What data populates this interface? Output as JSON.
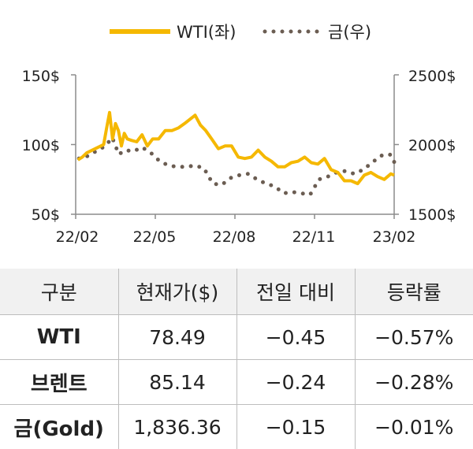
{
  "chart_data": {
    "type": "line",
    "legend": [
      {
        "name": "WTI(좌)",
        "color": "#F5B800",
        "style": "solid"
      },
      {
        "name": "금(우)",
        "color": "#6b5d52",
        "style": "dotted"
      }
    ],
    "legend_position": "top-center",
    "x_ticks": [
      "22/02",
      "22/05",
      "22/08",
      "22/11",
      "23/02"
    ],
    "y_left": {
      "ticks": [
        "150$",
        "100$",
        "50$"
      ],
      "range": [
        50,
        150
      ]
    },
    "y_right": {
      "ticks": [
        "2500$",
        "2000$",
        "1500$"
      ],
      "range": [
        1500,
        2500
      ]
    },
    "grid": false,
    "series": [
      {
        "name": "WTI(좌)",
        "axis": "left",
        "color": "#F5B800",
        "x": [
          "22/02",
          "22/02",
          "22/02",
          "22/03",
          "22/03",
          "22/03",
          "22/03",
          "22/03",
          "22/03",
          "22/03",
          "22/03",
          "22/03",
          "22/04",
          "22/04",
          "22/04",
          "22/04",
          "22/04",
          "22/05",
          "22/05",
          "22/05",
          "22/05",
          "22/06",
          "22/06",
          "22/06",
          "22/06",
          "22/06",
          "22/07",
          "22/07",
          "22/07",
          "22/07",
          "22/08",
          "22/08",
          "22/08",
          "22/08",
          "22/09",
          "22/09",
          "22/09",
          "22/09",
          "22/10",
          "22/10",
          "22/10",
          "22/10",
          "22/11",
          "22/11",
          "22/11",
          "22/11",
          "22/12",
          "22/12",
          "22/12",
          "22/12",
          "23/01",
          "23/01",
          "23/01",
          "23/01",
          "23/02",
          "23/02"
        ],
        "y": [
          89,
          91,
          94,
          100,
          112,
          123,
          104,
          115,
          110,
          99,
          108,
          104,
          103,
          102,
          107,
          99,
          104,
          104,
          110,
          110,
          112,
          115,
          118,
          121,
          114,
          110,
          104,
          97,
          99,
          99,
          91,
          90,
          91,
          96,
          91,
          88,
          84,
          84,
          87,
          88,
          91,
          87,
          86,
          90,
          82,
          80,
          74,
          74,
          72,
          78,
          80,
          77,
          75,
          79,
          78,
          78
        ]
      },
      {
        "name": "금(우)",
        "axis": "right",
        "color": "#6b5d52",
        "x": [
          "22/02",
          "22/02",
          "22/03",
          "22/03",
          "22/03",
          "22/03",
          "22/04",
          "22/04",
          "22/04",
          "22/05",
          "22/05",
          "22/05",
          "22/06",
          "22/06",
          "22/06",
          "22/07",
          "22/07",
          "22/07",
          "22/08",
          "22/08",
          "22/08",
          "22/09",
          "22/09",
          "22/09",
          "22/10",
          "22/10",
          "22/10",
          "22/11",
          "22/11",
          "22/11",
          "22/12",
          "22/12",
          "22/12",
          "23/01",
          "23/01",
          "23/01",
          "23/02",
          "23/02"
        ],
        "y": [
          1900,
          1910,
          1990,
          2050,
          1930,
          1960,
          1950,
          1980,
          1940,
          1880,
          1850,
          1840,
          1840,
          1850,
          1830,
          1720,
          1710,
          1760,
          1780,
          1790,
          1750,
          1720,
          1700,
          1650,
          1660,
          1650,
          1640,
          1750,
          1770,
          1800,
          1810,
          1790,
          1820,
          1870,
          1920,
          1930,
          1890,
          1850
        ]
      }
    ]
  },
  "table": {
    "headers": [
      "구분",
      "현재가($)",
      "전일 대비",
      "등락률"
    ],
    "rows": [
      [
        "WTI",
        "78.49",
        "−0.45",
        "−0.57%"
      ],
      [
        "브렌트",
        "85.14",
        "−0.24",
        "−0.28%"
      ],
      [
        "금(Gold)",
        "1,836.36",
        "−0.15",
        "−0.01%"
      ]
    ]
  }
}
